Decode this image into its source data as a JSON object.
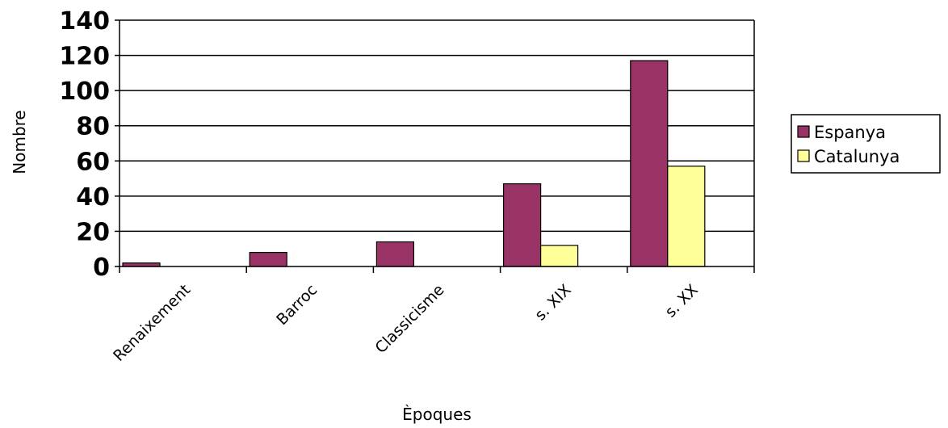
{
  "chart_data": {
    "type": "bar",
    "categories": [
      "Renaixement",
      "Barroc",
      "Classicisme",
      "s. XIX",
      "s. XX"
    ],
    "series": [
      {
        "name": "Espanya",
        "values": [
          2,
          8,
          14,
          47,
          117
        ],
        "color": "#993366"
      },
      {
        "name": "Catalunya",
        "values": [
          0,
          0,
          0,
          12,
          57
        ],
        "color": "#FFFF99"
      }
    ],
    "xlabel": "Èpoques",
    "ylabel": "Nombre",
    "ylim": [
      0,
      140
    ],
    "yticks": [
      0,
      20,
      40,
      60,
      80,
      100,
      120,
      140
    ],
    "grid": true,
    "legend": "right"
  }
}
